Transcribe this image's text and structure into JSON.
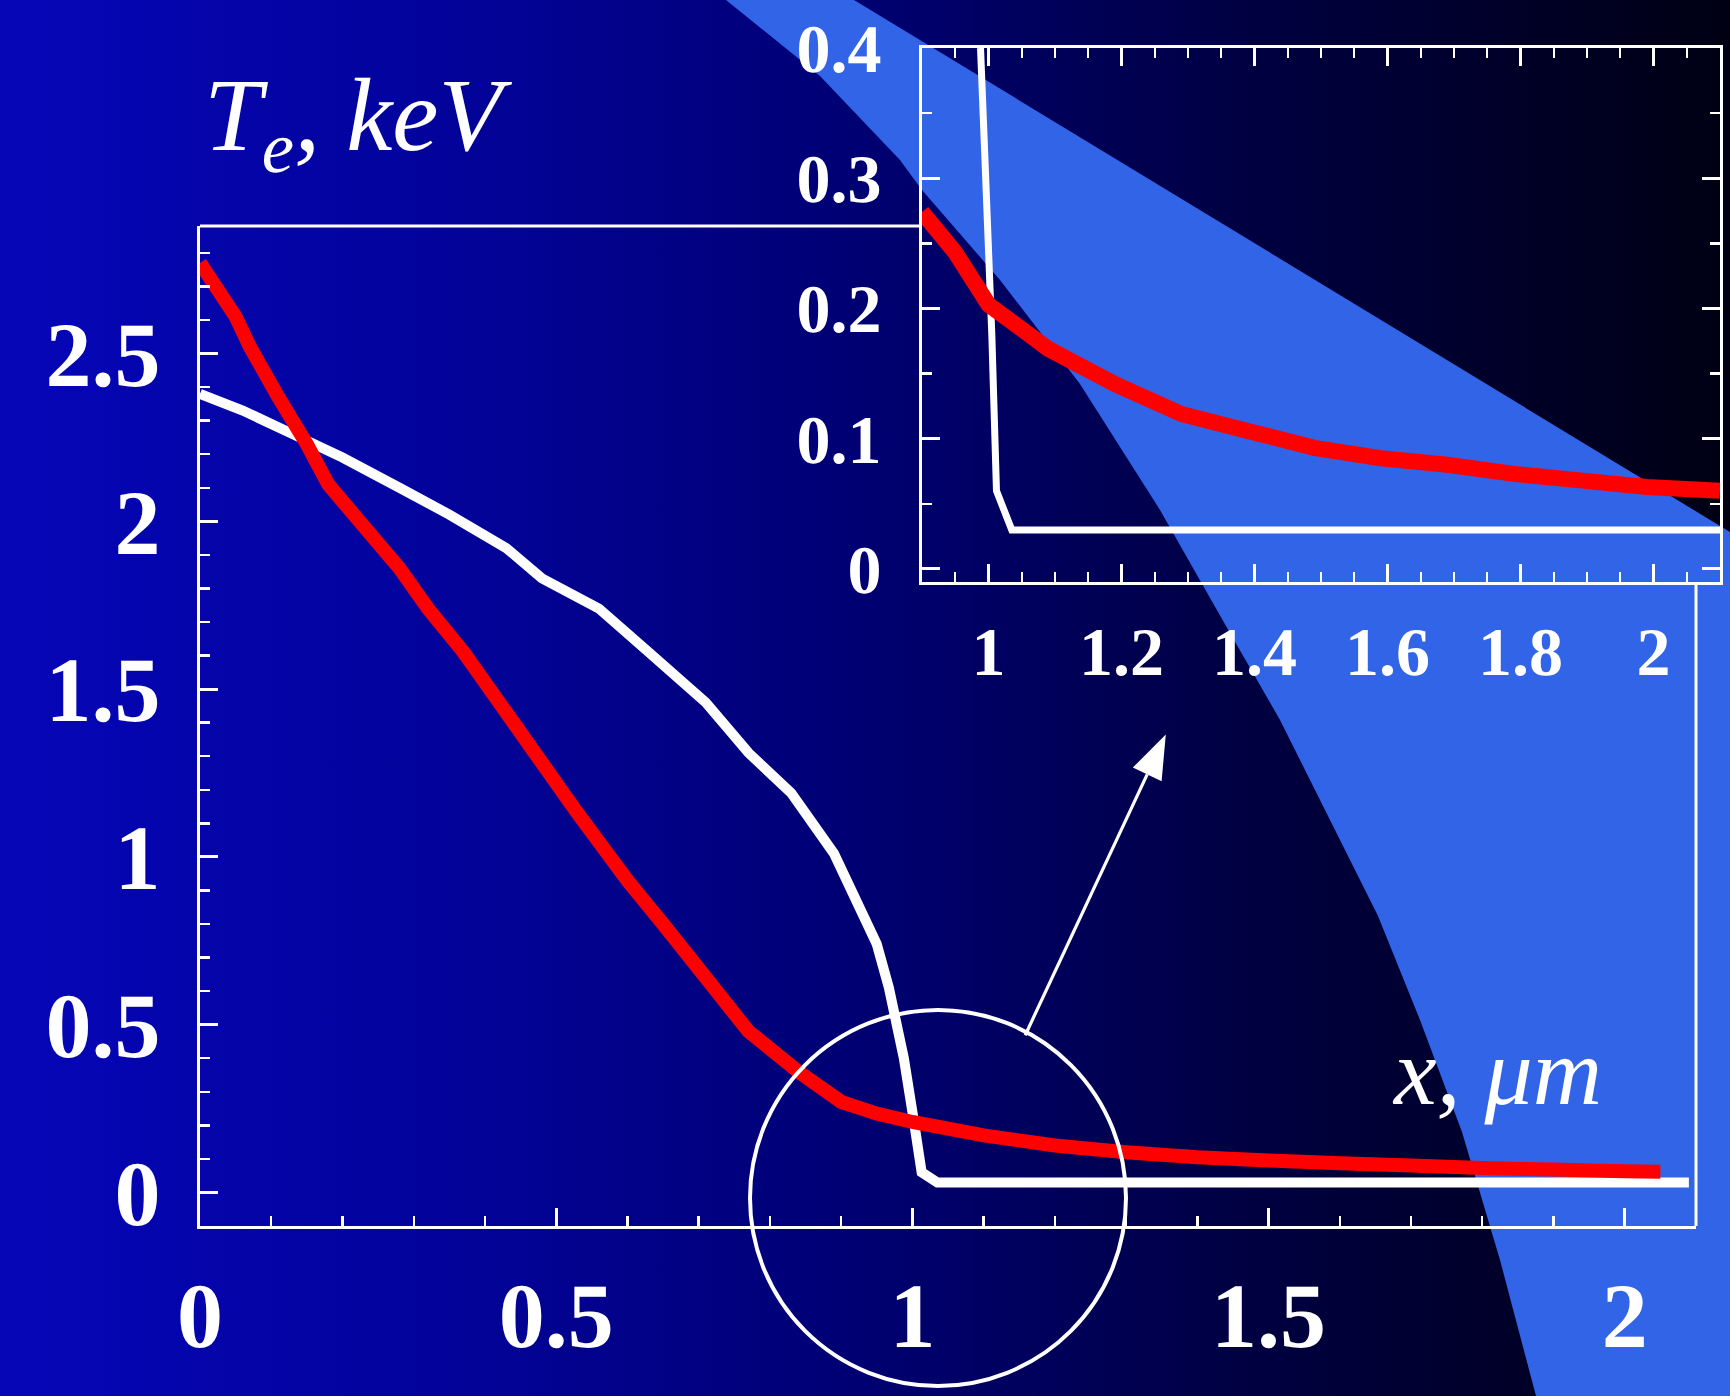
{
  "chart_data": [
    {
      "type": "line",
      "xlabel": "x, μm",
      "ylabel": "T$_{e}$, keV",
      "xlim": [
        0,
        2.1
      ],
      "ylim": [
        -0.1,
        2.88
      ],
      "xticks": [
        0,
        {
          "value": 0.1,
          "label": null
        },
        {
          "value": 0.2,
          "label": null
        },
        {
          "value": 0.3,
          "label": null
        },
        {
          "value": 0.4,
          "label": null
        },
        0.5,
        {
          "value": 0.6,
          "label": null
        },
        {
          "value": 0.7,
          "label": null
        },
        {
          "value": 0.8,
          "label": null
        },
        {
          "value": 0.9,
          "label": null
        },
        1,
        {
          "value": 1.1,
          "label": null
        },
        {
          "value": 1.2,
          "label": null
        },
        {
          "value": 1.3,
          "label": null
        },
        {
          "value": 1.4,
          "label": null
        },
        1.5,
        {
          "value": 1.6,
          "label": null
        },
        {
          "value": 1.7,
          "label": null
        },
        {
          "value": 1.8,
          "label": null
        },
        {
          "value": 1.9,
          "label": null
        },
        2
      ],
      "yticks": [
        0,
        {
          "value": 0.1,
          "label": null
        },
        {
          "value": 0.2,
          "label": null
        },
        {
          "value": 0.3,
          "label": null
        },
        {
          "value": 0.4,
          "label": null
        },
        0.5,
        {
          "value": 0.6,
          "label": null
        },
        {
          "value": 0.7,
          "label": null
        },
        {
          "value": 0.8,
          "label": null
        },
        {
          "value": 0.9,
          "label": null
        },
        1,
        {
          "value": 1.1,
          "label": null
        },
        {
          "value": 1.2,
          "label": null
        },
        {
          "value": 1.3,
          "label": null
        },
        {
          "value": 1.4,
          "label": null
        },
        1.5,
        {
          "value": 1.6,
          "label": null
        },
        {
          "value": 1.7,
          "label": null
        },
        {
          "value": 1.8,
          "label": null
        },
        {
          "value": 1.9,
          "label": null
        },
        2,
        {
          "value": 2.1,
          "label": null
        },
        {
          "value": 2.2,
          "label": null
        },
        {
          "value": 2.3,
          "label": null
        },
        {
          "value": 2.4,
          "label": null
        },
        2.5,
        {
          "value": 2.6,
          "label": null
        },
        {
          "value": 2.7,
          "label": null
        },
        {
          "value": 2.8,
          "label": null
        }
      ],
      "series": [
        {
          "color": "#ffffff",
          "x": [
            0,
            0.06,
            0.13,
            0.2,
            0.28,
            0.35,
            0.43,
            0.48,
            0.56,
            0.63,
            0.71,
            0.77,
            0.83,
            0.89,
            0.95,
            0.967,
            0.988,
            1.003,
            1.013,
            1.035,
            2.09
          ],
          "values": [
            2.38,
            2.33,
            2.26,
            2.19,
            2.1,
            2.02,
            1.92,
            1.83,
            1.74,
            1.61,
            1.46,
            1.31,
            1.19,
            1.01,
            0.74,
            0.61,
            0.4,
            0.2,
            0.06,
            0.03,
            0.03
          ]
        },
        {
          "color": "#ff0000",
          "x": [
            0,
            0.05,
            0.07,
            0.11,
            0.15,
            0.18,
            0.22,
            0.28,
            0.32,
            0.37,
            0.42,
            0.47,
            0.53,
            0.6,
            0.65,
            0.71,
            0.77,
            0.84,
            0.9,
            0.95,
            1.0,
            1.1,
            1.2,
            1.3,
            1.4,
            1.5,
            1.6,
            1.7,
            1.8,
            1.9,
            2.0,
            2.05
          ],
          "values": [
            2.77,
            2.61,
            2.52,
            2.37,
            2.23,
            2.11,
            2.01,
            1.86,
            1.74,
            1.61,
            1.46,
            1.31,
            1.13,
            0.93,
            0.8,
            0.64,
            0.48,
            0.36,
            0.27,
            0.235,
            0.21,
            0.17,
            0.14,
            0.12,
            0.105,
            0.095,
            0.087,
            0.08,
            0.073,
            0.068,
            0.063,
            0.062
          ]
        }
      ]
    },
    {
      "type": "line",
      "xlim": [
        0.9,
        2.1
      ],
      "ylim": [
        -0.01,
        0.4
      ],
      "xticks": [
        {
          "value": 0.95,
          "label": null
        },
        1,
        {
          "value": 1.05,
          "label": null
        },
        {
          "value": 1.1,
          "label": null
        },
        {
          "value": 1.15,
          "label": null
        },
        1.2,
        {
          "value": 1.25,
          "label": null
        },
        {
          "value": 1.3,
          "label": null
        },
        {
          "value": 1.35,
          "label": null
        },
        1.4,
        {
          "value": 1.45,
          "label": null
        },
        {
          "value": 1.5,
          "label": null
        },
        {
          "value": 1.55,
          "label": null
        },
        1.6,
        {
          "value": 1.65,
          "label": null
        },
        {
          "value": 1.7,
          "label": null
        },
        {
          "value": 1.75,
          "label": null
        },
        1.8,
        {
          "value": 1.85,
          "label": null
        },
        {
          "value": 1.9,
          "label": null
        },
        {
          "value": 1.95,
          "label": null
        },
        2,
        {
          "value": 2.05,
          "label": null
        }
      ],
      "yticks": [
        0,
        {
          "value": 0.05,
          "label": null
        },
        0.1,
        {
          "value": 0.15,
          "label": null
        },
        0.2,
        {
          "value": 0.25,
          "label": null
        },
        0.3,
        {
          "value": 0.35,
          "label": null
        },
        0.4
      ],
      "series": [
        {
          "color": "#ffffff",
          "x": [
            0.988,
            0.995,
            1.005,
            1.012,
            1.035,
            2.1
          ],
          "values": [
            0.4,
            0.31,
            0.18,
            0.06,
            0.03,
            0.03
          ]
        },
        {
          "color": "#ff0000",
          "x": [
            0.9,
            0.95,
            1.0,
            1.09,
            1.19,
            1.29,
            1.39,
            1.49,
            1.59,
            1.69,
            1.79,
            1.89,
            1.99,
            2.1
          ],
          "values": [
            0.274,
            0.243,
            0.203,
            0.169,
            0.142,
            0.119,
            0.106,
            0.093,
            0.085,
            0.08,
            0.073,
            0.068,
            0.063,
            0.06
          ]
        }
      ]
    }
  ]
}
